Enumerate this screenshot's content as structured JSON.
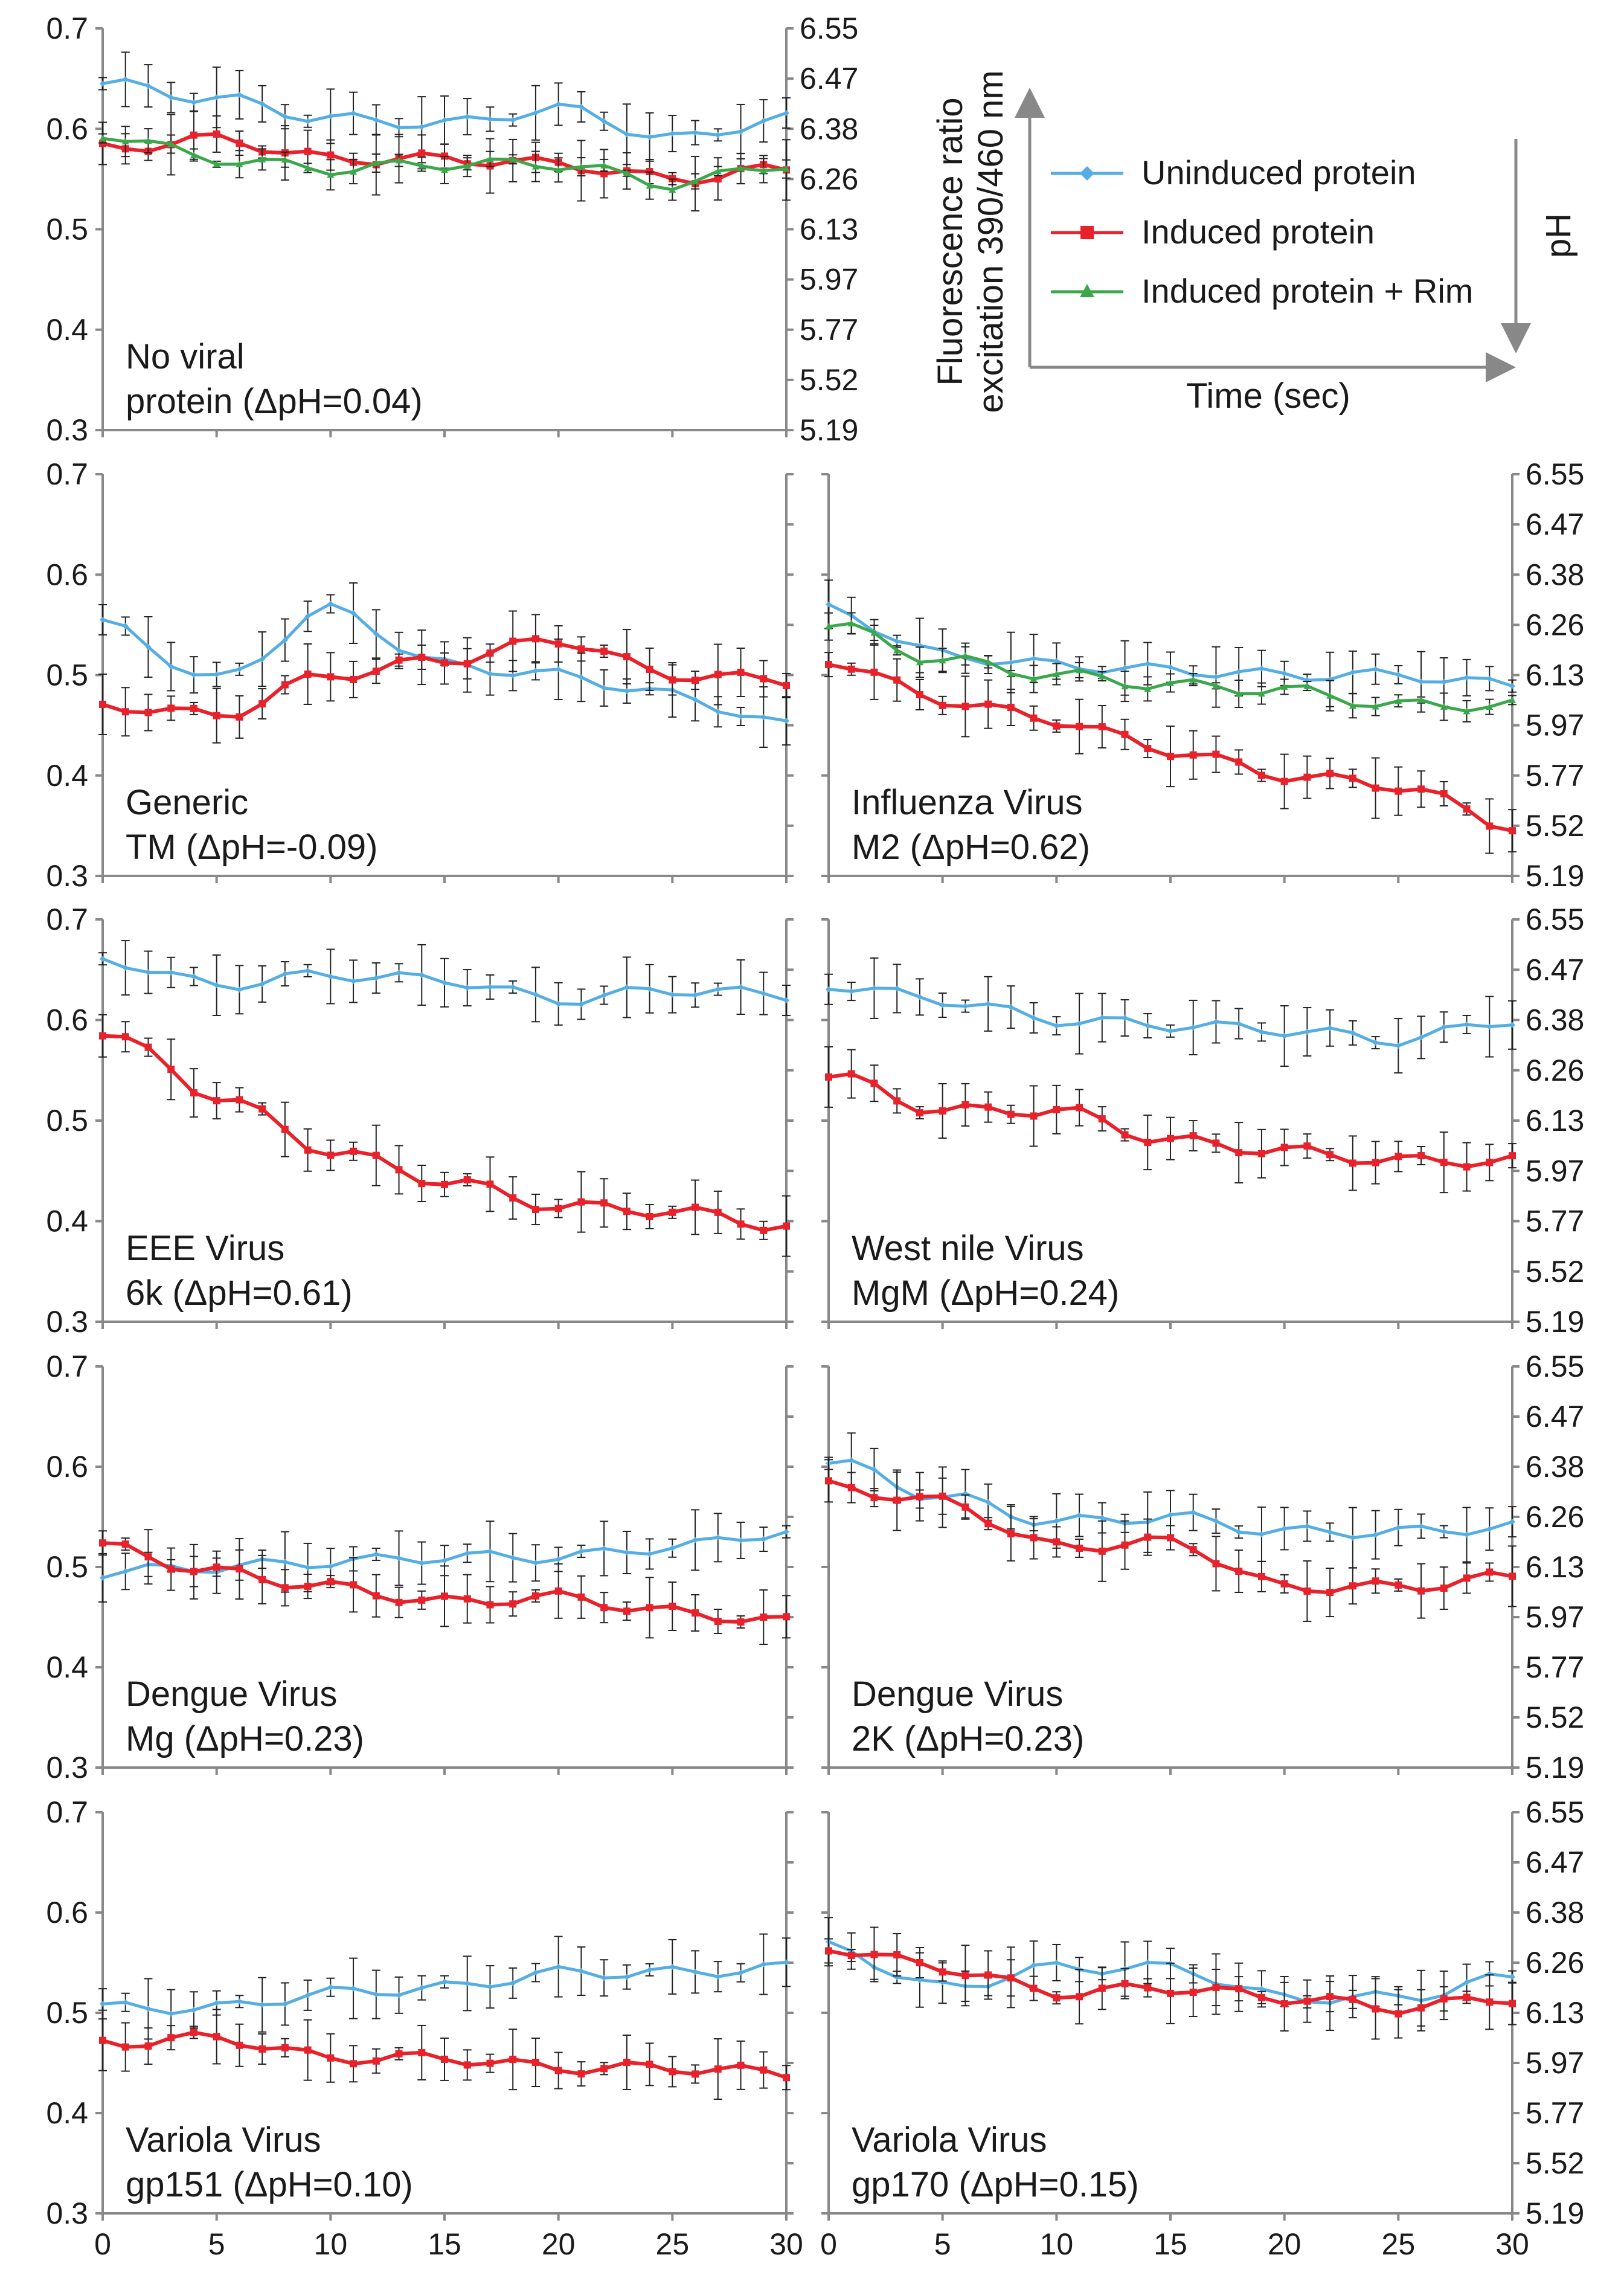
{
  "legend": {
    "series": [
      {
        "name": "Uninduced protein",
        "color": "#55aee3",
        "marker": "diamond"
      },
      {
        "name": "Induced protein",
        "color": "#e8212b",
        "marker": "square"
      },
      {
        "name": "Induced protein + Rim",
        "color": "#3aa84a",
        "marker": "triangle"
      }
    ],
    "ylabel_line1": "Fluorescence ratio",
    "ylabel_line2": "excitation 390/460 nm",
    "xlabel": "Time (sec)",
    "ph_label": "pH"
  },
  "axes": {
    "left_ticks": [
      "0.3",
      "0.4",
      "0.5",
      "0.6",
      "0.7"
    ],
    "right_ticks": [
      "5.19",
      "5.52",
      "5.77",
      "5.97",
      "6.13",
      "6.26",
      "6.38",
      "6.47",
      "6.55"
    ],
    "x_ticks": [
      "0",
      "5",
      "10",
      "15",
      "20",
      "25",
      "30"
    ]
  },
  "colors": {
    "uninduced": "#55aee3",
    "induced": "#e8212b",
    "rim": "#3aa84a",
    "axis": "#888888"
  },
  "chart_data": [
    {
      "type": "line",
      "panel": "No viral protein",
      "label_line1": "No viral",
      "label_line2": "protein (ΔpH=0.04)",
      "x": [
        0,
        5,
        10,
        15,
        20,
        25,
        30
      ],
      "xlim": [
        0,
        30
      ],
      "ylim": [
        0.3,
        0.7
      ],
      "series": [
        {
          "name": "Uninduced protein",
          "values": [
            0.645,
            0.63,
            0.61,
            0.605,
            0.62,
            0.59,
            0.61
          ]
        },
        {
          "name": "Induced protein",
          "values": [
            0.58,
            0.59,
            0.57,
            0.57,
            0.565,
            0.55,
            0.56
          ]
        },
        {
          "name": "Induced protein + Rim",
          "values": [
            0.595,
            0.57,
            0.56,
            0.565,
            0.565,
            0.545,
            0.565
          ]
        }
      ]
    },
    {
      "type": "line",
      "panel": "Generic TM",
      "label_line1": "Generic",
      "label_line2": "TM (ΔpH=-0.09)",
      "x": [
        0,
        5,
        10,
        15,
        20,
        25,
        30
      ],
      "xlim": [
        0,
        30
      ],
      "ylim": [
        0.3,
        0.7
      ],
      "series": [
        {
          "name": "Uninduced protein",
          "values": [
            0.55,
            0.495,
            0.565,
            0.51,
            0.5,
            0.48,
            0.45
          ]
        },
        {
          "name": "Induced protein",
          "values": [
            0.47,
            0.46,
            0.5,
            0.515,
            0.535,
            0.5,
            0.495
          ]
        }
      ]
    },
    {
      "type": "line",
      "panel": "Influenza Virus M2",
      "label_line1": "Influenza Virus",
      "label_line2": "M2 (ΔpH=0.62)",
      "x": [
        0,
        5,
        10,
        15,
        20,
        25,
        30
      ],
      "xlim": [
        0,
        30
      ],
      "ylim": [
        0.3,
        0.7
      ],
      "series": [
        {
          "name": "Uninduced protein",
          "values": [
            0.565,
            0.52,
            0.51,
            0.505,
            0.5,
            0.5,
            0.49
          ]
        },
        {
          "name": "Induced protein",
          "values": [
            0.515,
            0.475,
            0.455,
            0.425,
            0.4,
            0.39,
            0.35
          ]
        },
        {
          "name": "Induced protein + Rim",
          "values": [
            0.55,
            0.515,
            0.5,
            0.49,
            0.485,
            0.47,
            0.47
          ]
        }
      ]
    },
    {
      "type": "line",
      "panel": "EEE Virus 6k",
      "label_line1": "EEE Virus",
      "label_line2": "6k (ΔpH=0.61)",
      "x": [
        0,
        5,
        10,
        15,
        20,
        25,
        30
      ],
      "xlim": [
        0,
        30
      ],
      "ylim": [
        0.3,
        0.7
      ],
      "series": [
        {
          "name": "Uninduced protein",
          "values": [
            0.66,
            0.635,
            0.645,
            0.64,
            0.62,
            0.63,
            0.625
          ]
        },
        {
          "name": "Induced protein",
          "values": [
            0.59,
            0.525,
            0.47,
            0.44,
            0.415,
            0.41,
            0.395
          ]
        }
      ]
    },
    {
      "type": "line",
      "panel": "West nile Virus MgM",
      "label_line1": "West nile Virus",
      "label_line2": "MgM (ΔpH=0.24)",
      "x": [
        0,
        5,
        10,
        15,
        20,
        25,
        30
      ],
      "xlim": [
        0,
        30
      ],
      "ylim": [
        0.3,
        0.7
      ],
      "series": [
        {
          "name": "Uninduced protein",
          "values": [
            0.635,
            0.62,
            0.6,
            0.595,
            0.59,
            0.58,
            0.6
          ]
        },
        {
          "name": "Induced protein",
          "values": [
            0.545,
            0.51,
            0.51,
            0.48,
            0.47,
            0.46,
            0.46
          ]
        }
      ]
    },
    {
      "type": "line",
      "panel": "Dengue Virus Mg",
      "label_line1": "Dengue Virus",
      "label_line2": "Mg (ΔpH=0.23)",
      "x": [
        0,
        5,
        10,
        15,
        20,
        25,
        30
      ],
      "xlim": [
        0,
        30
      ],
      "ylim": [
        0.3,
        0.7
      ],
      "series": [
        {
          "name": "Uninduced protein",
          "values": [
            0.495,
            0.5,
            0.505,
            0.51,
            0.51,
            0.52,
            0.535
          ]
        },
        {
          "name": "Induced protein",
          "values": [
            0.52,
            0.495,
            0.48,
            0.465,
            0.47,
            0.455,
            0.445
          ]
        }
      ]
    },
    {
      "type": "line",
      "panel": "Dengue Virus 2K",
      "label_line1": "Dengue Virus",
      "label_line2": "2K (ΔpH=0.23)",
      "x": [
        0,
        5,
        10,
        15,
        20,
        25,
        30
      ],
      "xlim": [
        0,
        30
      ],
      "ylim": [
        0.3,
        0.7
      ],
      "series": [
        {
          "name": "Uninduced protein",
          "values": [
            0.605,
            0.57,
            0.545,
            0.55,
            0.535,
            0.535,
            0.54
          ]
        },
        {
          "name": "Induced protein",
          "values": [
            0.58,
            0.565,
            0.52,
            0.525,
            0.48,
            0.48,
            0.49
          ]
        }
      ]
    },
    {
      "type": "line",
      "panel": "Variola Virus gp151",
      "label_line1": "Variola Virus",
      "label_line2": "gp151 (ΔpH=0.10)",
      "x": [
        0,
        5,
        10,
        15,
        20,
        25,
        30
      ],
      "xlim": [
        0,
        30
      ],
      "ylim": [
        0.3,
        0.7
      ],
      "series": [
        {
          "name": "Uninduced protein",
          "values": [
            0.505,
            0.505,
            0.52,
            0.525,
            0.54,
            0.54,
            0.545
          ]
        },
        {
          "name": "Induced protein",
          "values": [
            0.47,
            0.475,
            0.455,
            0.455,
            0.445,
            0.445,
            0.44
          ]
        }
      ]
    },
    {
      "type": "line",
      "panel": "Variola Virus gp170",
      "label_line1": "Variola Virus",
      "label_line2": "gp170 (ΔpH=0.15)",
      "x": [
        0,
        5,
        10,
        15,
        20,
        25,
        30
      ],
      "xlim": [
        0,
        30
      ],
      "ylim": [
        0.3,
        0.7
      ],
      "series": [
        {
          "name": "Uninduced protein",
          "values": [
            0.565,
            0.525,
            0.545,
            0.545,
            0.515,
            0.515,
            0.535
          ]
        },
        {
          "name": "Induced protein",
          "values": [
            0.565,
            0.545,
            0.52,
            0.525,
            0.515,
            0.505,
            0.515
          ]
        }
      ]
    }
  ]
}
